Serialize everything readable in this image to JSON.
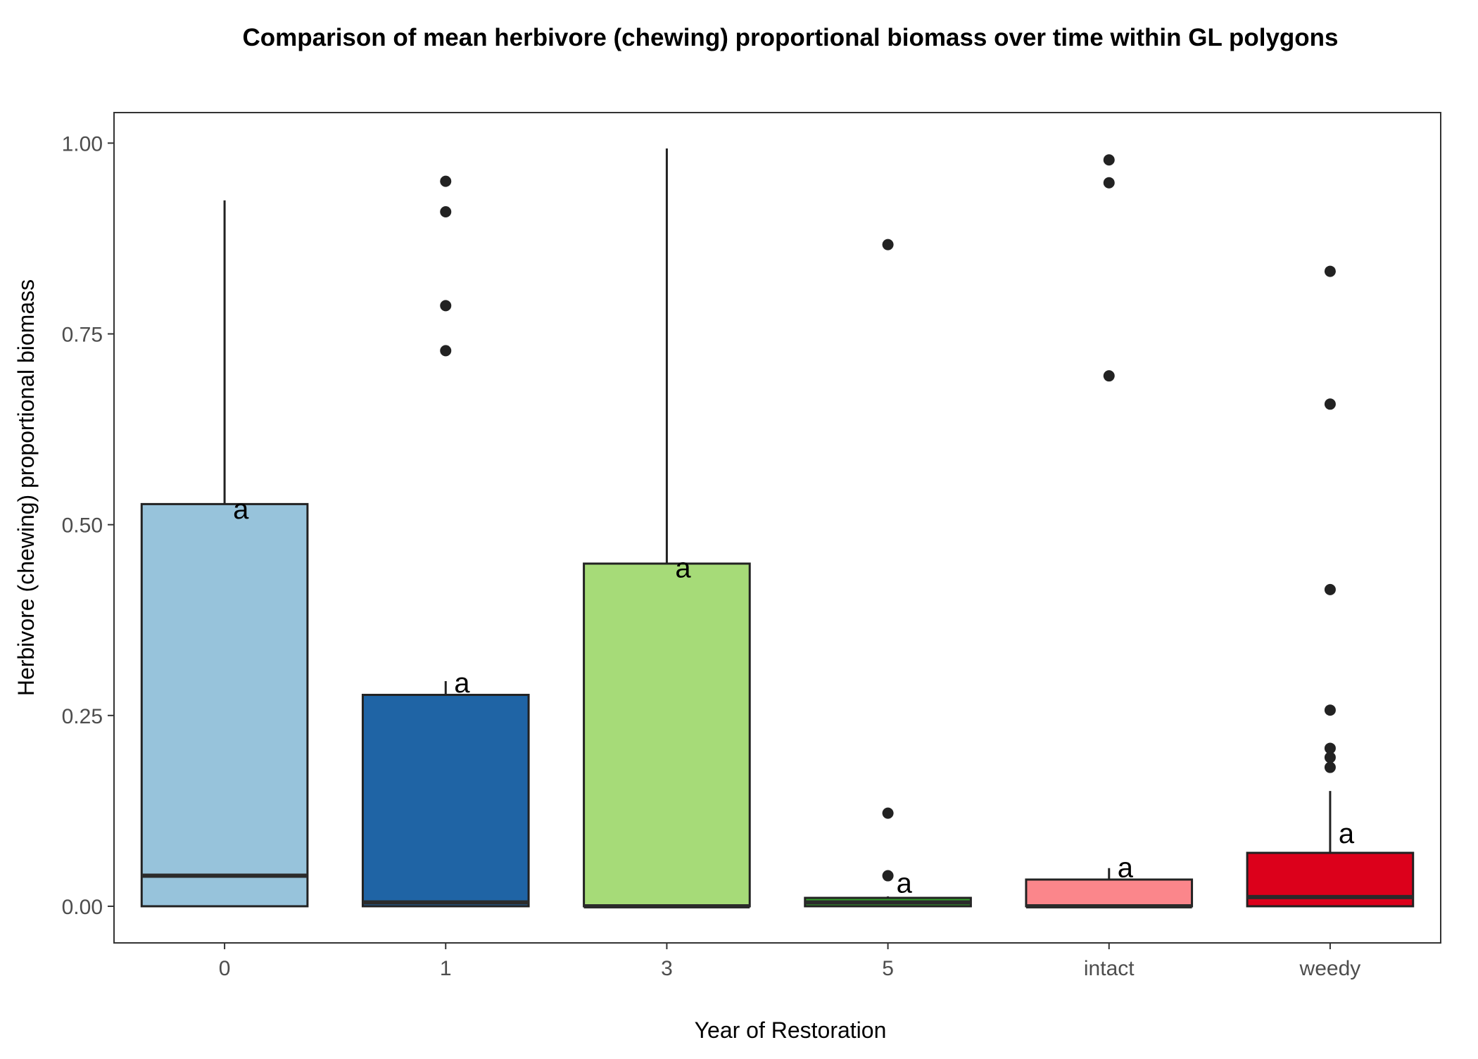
{
  "chart_data": {
    "type": "boxplot",
    "title": "Comparison of mean herbivore (chewing) proportional biomass over time within GL polygons",
    "xlabel": "Year of Restoration",
    "ylabel": "Herbivore (chewing) proportional biomass",
    "ylim": [
      -0.048,
      1.04
    ],
    "yticks": [
      0.0,
      0.25,
      0.5,
      0.75,
      1.0
    ],
    "ytick_labels": [
      "0.00",
      "0.25",
      "0.50",
      "0.75",
      "1.00"
    ],
    "grid": false,
    "legend": "none",
    "categories": [
      "0",
      "1",
      "3",
      "5",
      "intact",
      "weedy"
    ],
    "boxes": [
      {
        "category": "0",
        "q1": 0.0,
        "median": 0.04,
        "q3": 0.527,
        "whisker_low": 0.0,
        "whisker_high": 0.925,
        "outliers": [],
        "fill": "#97c3db",
        "median_color": "#2b2b2b",
        "sig": "a",
        "sig_y": 0.51
      },
      {
        "category": "1",
        "q1": 0.0,
        "median": 0.005,
        "q3": 0.277,
        "whisker_low": 0.0,
        "whisker_high": 0.295,
        "outliers": [
          0.95,
          0.91,
          0.787,
          0.728
        ],
        "fill": "#1f64a5",
        "median_color": "#2b2b2b",
        "sig": "a",
        "sig_y": 0.282
      },
      {
        "category": "3",
        "q1": 0.0,
        "median": 0.0,
        "q3": 0.449,
        "whisker_low": 0.0,
        "whisker_high": 0.993,
        "outliers": [],
        "fill": "#a6db78",
        "median_color": "#2b2b2b",
        "sig": "a",
        "sig_y": 0.433
      },
      {
        "category": "5",
        "q1": 0.0,
        "median": 0.005,
        "q3": 0.011,
        "whisker_low": 0.0,
        "whisker_high": 0.013,
        "outliers": [
          0.867,
          0.122,
          0.04
        ],
        "fill": "#33a02c",
        "median_color": "#2b2b2b",
        "sig": "a",
        "sig_y": 0.02
      },
      {
        "category": "intact",
        "q1": 0.0,
        "median": 0.0,
        "q3": 0.035,
        "whisker_low": 0.0,
        "whisker_high": 0.05,
        "outliers": [
          0.978,
          0.948,
          0.695
        ],
        "fill": "#fb868b",
        "median_color": "#2b2b2b",
        "sig": "a",
        "sig_y": 0.04
      },
      {
        "category": "weedy",
        "q1": 0.0,
        "median": 0.012,
        "q3": 0.07,
        "whisker_low": 0.0,
        "whisker_high": 0.151,
        "outliers": [
          0.832,
          0.658,
          0.415,
          0.257,
          0.207,
          0.195,
          0.182
        ],
        "fill": "#dc001b",
        "median_color": "#2b2b2b",
        "sig": "a",
        "sig_y": 0.085
      }
    ]
  }
}
